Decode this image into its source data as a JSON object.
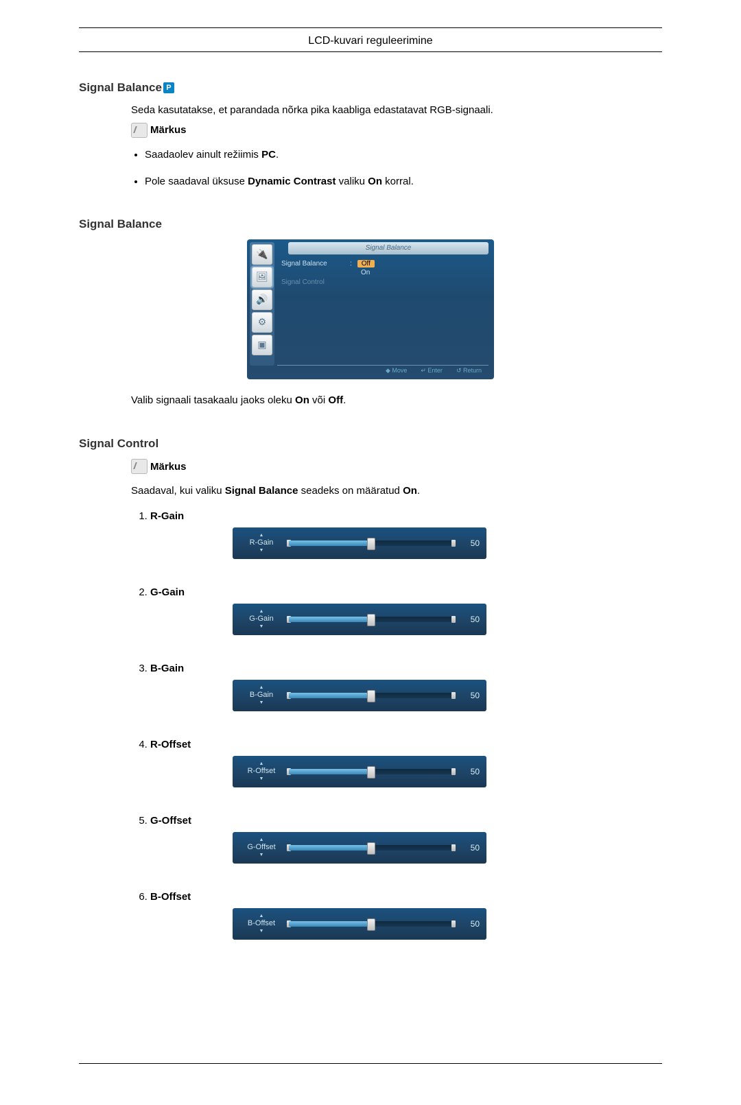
{
  "header": {
    "title": "LCD-kuvari reguleerimine"
  },
  "section1": {
    "heading": "Signal Balance",
    "p_icon": "P",
    "intro": "Seda kasutatakse, et parandada nõrka pika kaabliga edastatavat RGB-signaali.",
    "note_label": "Märkus",
    "bullets": {
      "b1_pre": "Saadaolev ainult režiimis ",
      "b1_bold": "PC",
      "b1_post": ".",
      "b2_pre": "Pole saadaval üksuse ",
      "b2_bold1": "Dynamic Contrast",
      "b2_mid": " valiku ",
      "b2_bold2": "On",
      "b2_post": " korral."
    }
  },
  "section2": {
    "heading": "Signal Balance",
    "osd": {
      "tab_title": "Signal Balance",
      "row1_label": "Signal Balance",
      "row1_off": "Off",
      "row1_on": "On",
      "row2_label": "Signal Control",
      "foot_move": "◆ Move",
      "foot_enter": "↵ Enter",
      "foot_return": "↺ Return"
    },
    "para_pre": "Valib signaali tasakaalu jaoks oleku ",
    "para_b1": "On",
    "para_mid": " või ",
    "para_b2": "Off",
    "para_post": "."
  },
  "section3": {
    "heading": "Signal Control",
    "note_label": "Märkus",
    "avail_pre": "Saadaval, kui valiku ",
    "avail_b1": "Signal Balance",
    "avail_mid": " seadeks on määratud ",
    "avail_b2": "On",
    "avail_post": "."
  },
  "sliders": [
    {
      "label": "R-Gain",
      "value": 50,
      "pct": 50
    },
    {
      "label": "G-Gain",
      "value": 50,
      "pct": 50
    },
    {
      "label": "B-Gain",
      "value": 50,
      "pct": 50
    },
    {
      "label": "R-Offset",
      "value": 50,
      "pct": 50
    },
    {
      "label": "G-Offset",
      "value": 50,
      "pct": 50
    },
    {
      "label": "B-Offset",
      "value": 50,
      "pct": 50
    }
  ],
  "colors": {
    "osd_bg_top": "#1b5a8a",
    "osd_bg_bottom": "#254b6e",
    "highlight": "#f0b050",
    "text": "#000000"
  }
}
